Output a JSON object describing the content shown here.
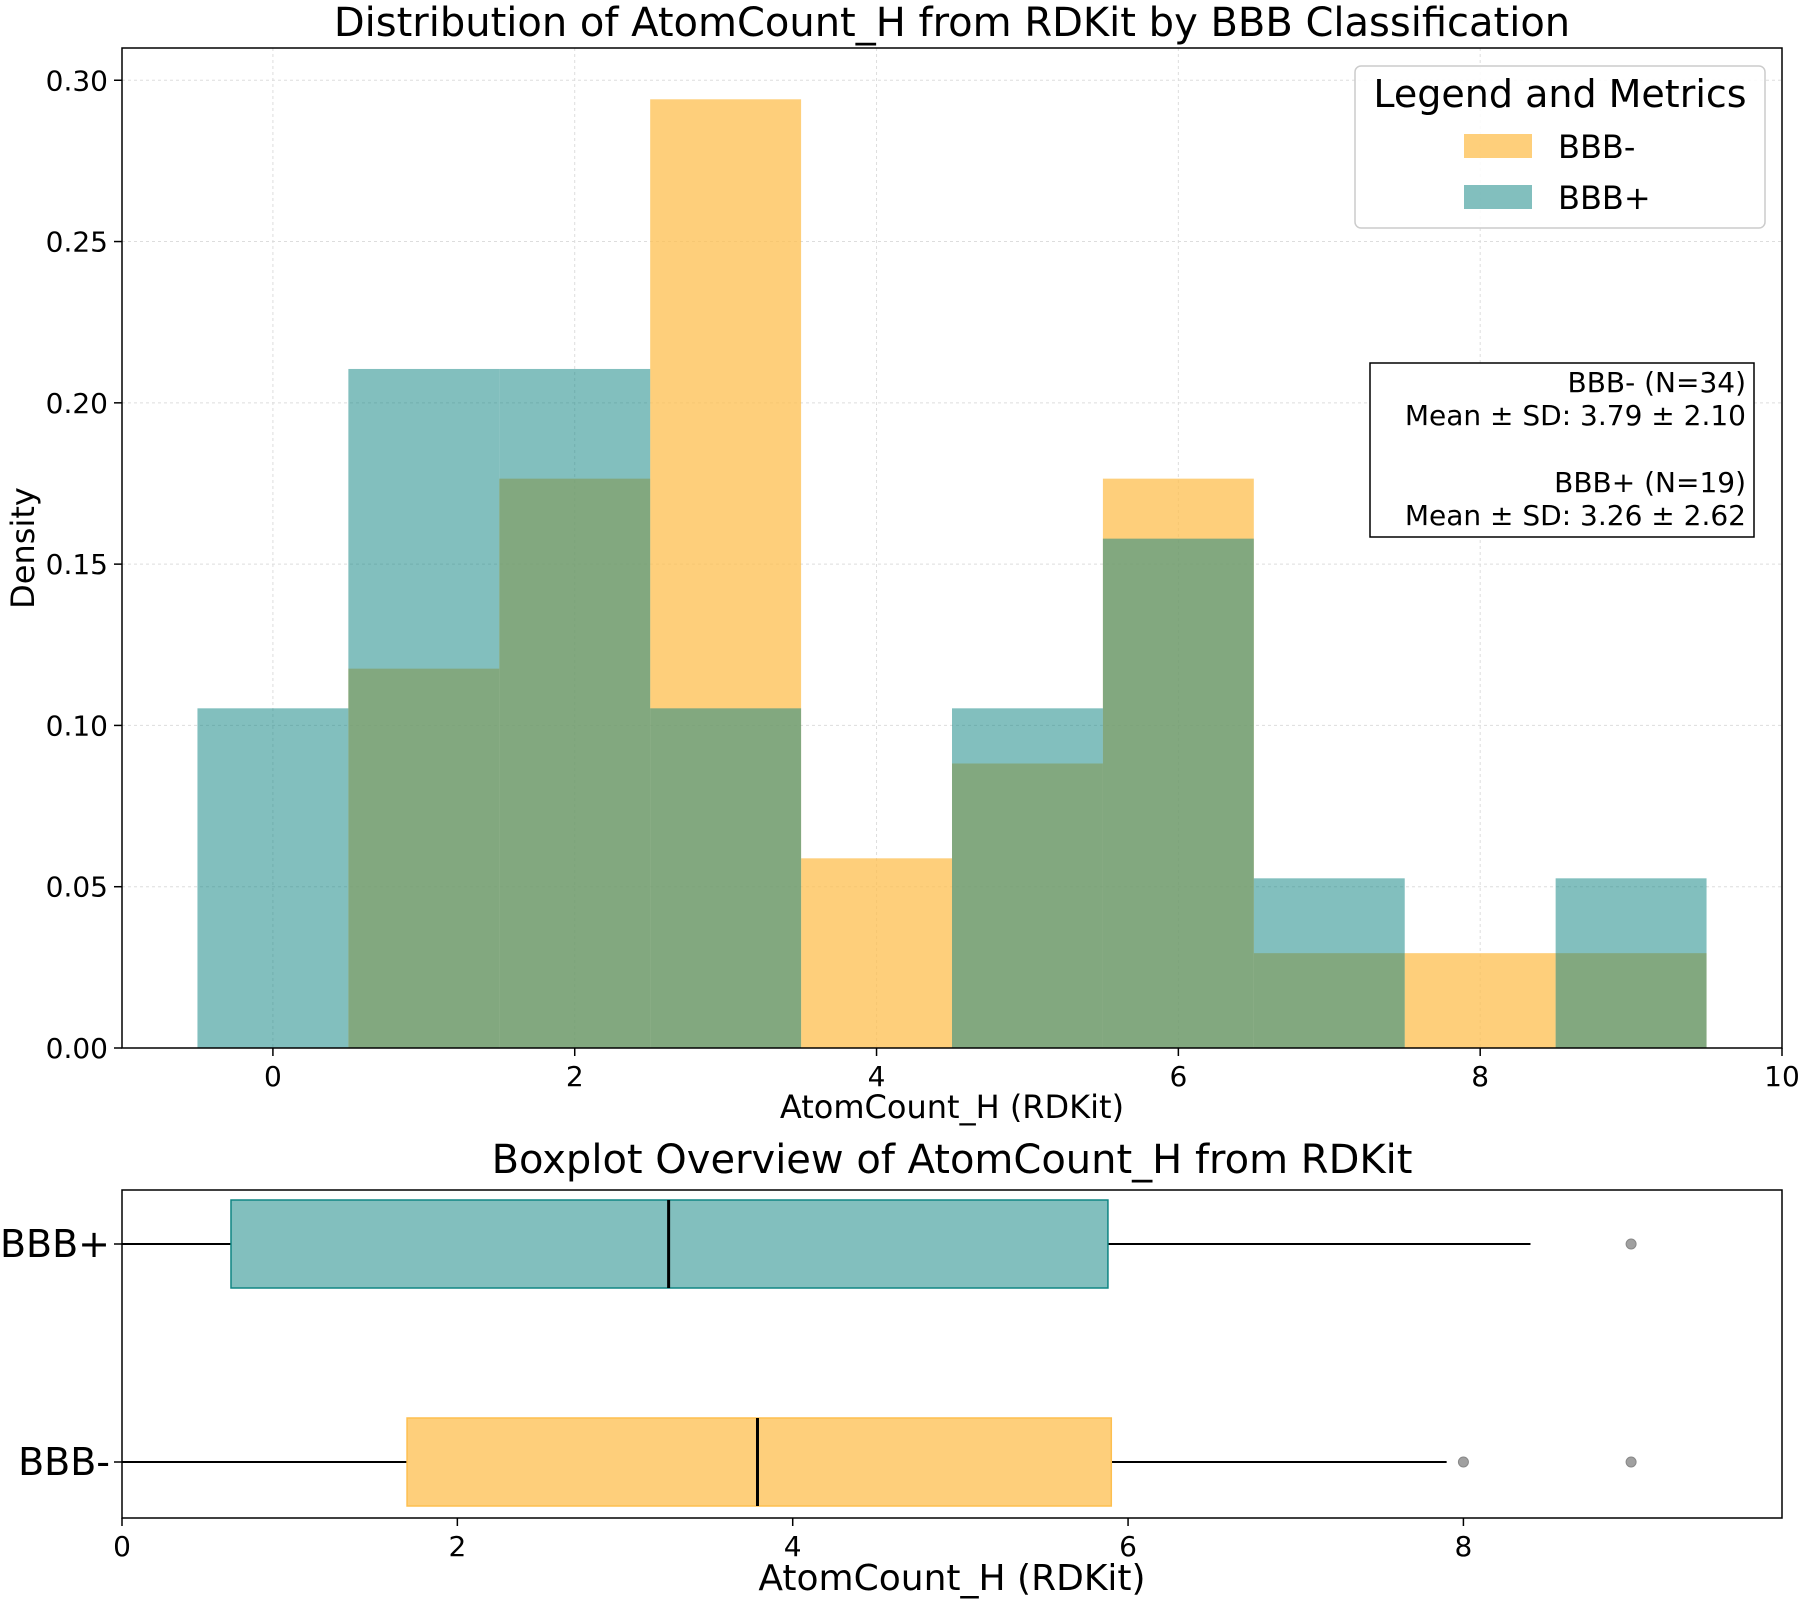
{
  "colors": {
    "bbb_minus": "#FDBF4F",
    "bbb_plus": "#0F8583",
    "overlap": "#80A880",
    "outlier": "#A0A0A0"
  },
  "chart_data": [
    {
      "type": "histogram",
      "title": "Distribution of AtomCount_H from RDKit by BBB Classification",
      "xlabel": "AtomCount_H (RDKit)",
      "ylabel": "Density",
      "xlim": [
        -1,
        10
      ],
      "ylim": [
        0,
        0.31
      ],
      "xticks": [
        0,
        2,
        4,
        6,
        8,
        10
      ],
      "yticks": [
        0.0,
        0.05,
        0.1,
        0.15,
        0.2,
        0.25,
        0.3
      ],
      "ytick_labels": [
        "0.00",
        "0.05",
        "0.10",
        "0.15",
        "0.20",
        "0.25",
        "0.30"
      ],
      "grid": true,
      "bin_edges": [
        -0.5,
        0.5,
        1.5,
        2.5,
        3.5,
        4.5,
        5.5,
        6.5,
        7.5,
        8.5,
        9.5
      ],
      "series": [
        {
          "name": "BBB-",
          "color_key": "bbb_minus",
          "values": [
            0.0,
            0.1176,
            0.1765,
            0.2941,
            0.0588,
            0.0882,
            0.1765,
            0.0294,
            0.0294,
            0.0294
          ]
        },
        {
          "name": "BBB+",
          "color_key": "bbb_plus",
          "values": [
            0.1053,
            0.2105,
            0.2105,
            0.1053,
            0.0,
            0.1053,
            0.1579,
            0.0526,
            0.0,
            0.0526
          ]
        }
      ],
      "legend": {
        "title": "Legend and Metrics",
        "placement": "top-right",
        "entries": [
          "BBB-",
          "BBB+"
        ]
      },
      "metrics_box": {
        "placement": "right",
        "lines": [
          "BBB- (N=34)",
          "Mean ± SD: 3.79 ± 2.10",
          "BBB+ (N=19)",
          "Mean ± SD: 3.26 ± 2.62"
        ]
      }
    },
    {
      "type": "boxplot",
      "title": "Boxplot Overview of AtomCount_H from RDKit",
      "xlabel": "AtomCount_H (RDKit)",
      "xlim": [
        0,
        9.9
      ],
      "xticks": [
        0,
        2,
        4,
        6,
        8
      ],
      "categories": [
        "BBB+",
        "BBB-"
      ],
      "boxes": [
        {
          "name": "BBB+",
          "color_key": "bbb_plus",
          "whisker_low": 0,
          "q1": 0.65,
          "median": 3.26,
          "q3": 5.88,
          "whisker_high": 8.4,
          "outliers": [
            9
          ]
        },
        {
          "name": "BBB-",
          "color_key": "bbb_minus",
          "whisker_low": 0,
          "q1": 1.7,
          "median": 3.79,
          "q3": 5.9,
          "whisker_high": 7.9,
          "outliers": [
            8,
            9
          ]
        }
      ]
    }
  ]
}
